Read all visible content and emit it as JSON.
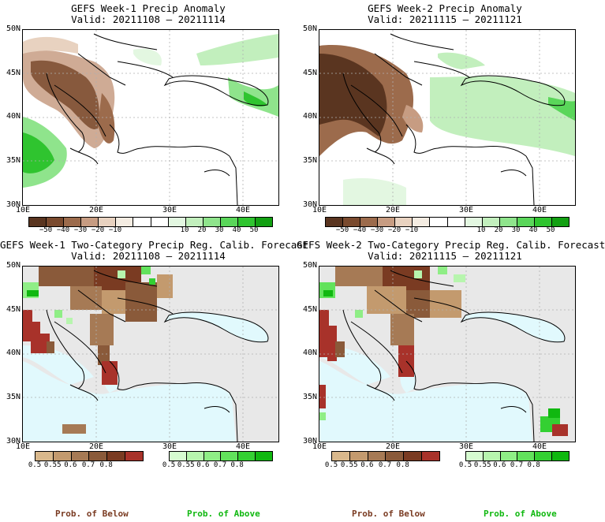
{
  "panels": [
    {
      "title": "GEFS Week-1 Precip Anomaly",
      "valid": "Valid: 20211108 – 20211114"
    },
    {
      "title": "GEFS Week-2 Precip Anomaly",
      "valid": "Valid: 20211115 – 20211121"
    },
    {
      "title": "GEFS Week-1 Two-Category Precip Reg. Calib. Forecast",
      "valid": "Valid: 20211108 – 20211114"
    },
    {
      "title": "GEFS Week-2 Two-Category Precip Reg. Calib. Forecast",
      "valid": "Valid: 20211115 – 20211121"
    }
  ],
  "axes": {
    "lat_labels": [
      "50N",
      "45N",
      "40N",
      "35N",
      "30N"
    ],
    "lon_labels": [
      "10E",
      "20E",
      "30E",
      "40E"
    ]
  },
  "anomaly_colorbar": {
    "ticks": [
      "−50",
      "−40",
      "−30",
      "−20",
      "−10",
      "10",
      "20",
      "30",
      "40",
      "50"
    ],
    "colors": [
      "#5a3520",
      "#7a4a2e",
      "#9c6b4c",
      "#c79c82",
      "#e8d2c0",
      "#f4ece2",
      "#ffffff",
      "#ffffff",
      "#e3f7e1",
      "#c2efbd",
      "#8fe48c",
      "#5ad65a",
      "#2fc42f",
      "#12a012"
    ]
  },
  "prob_below": {
    "ticks": [
      "0.5",
      "0.55",
      "0.6",
      "0.7",
      "0.8"
    ],
    "colors": [
      "#d9b88c",
      "#c39a6e",
      "#a67a55",
      "#8a5a3a",
      "#7a3b22",
      "#a8322a"
    ],
    "label": "Prob. of Below"
  },
  "prob_above": {
    "ticks": [
      "0.5",
      "0.55",
      "0.6",
      "0.7",
      "0.8"
    ],
    "colors": [
      "#d6fbd0",
      "#b7f5ae",
      "#8fee86",
      "#62e25c",
      "#34d032",
      "#10b810"
    ],
    "label": "Prob. of Above"
  },
  "colors": {
    "sea": "#e1f9fd",
    "land_masked": "#e8e8e8",
    "coast": "#000000",
    "grid": "#b0b0b0"
  }
}
